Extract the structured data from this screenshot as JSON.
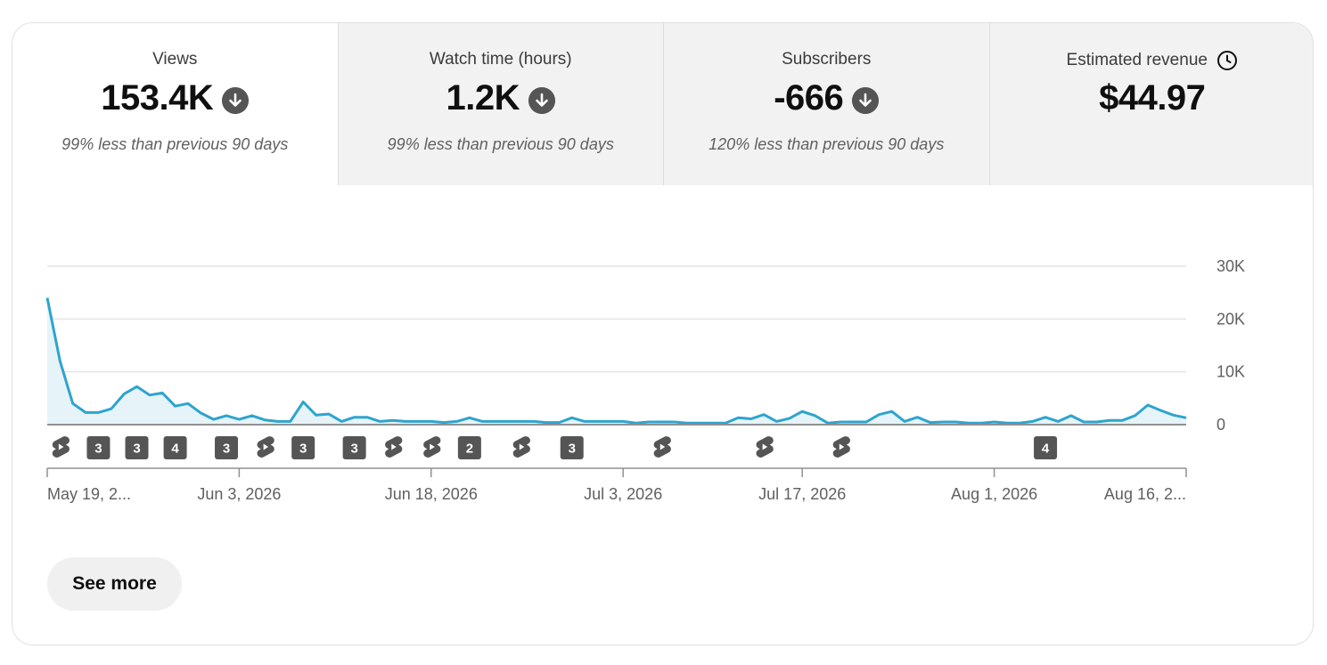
{
  "tabs": [
    {
      "label": "Views",
      "value": "153.4K",
      "change": "99% less than previous 90 days",
      "icon": "arrow-down-circle-icon",
      "selected": true
    },
    {
      "label": "Watch time (hours)",
      "value": "1.2K",
      "change": "99% less than previous 90 days",
      "icon": "arrow-down-circle-icon"
    },
    {
      "label": "Subscribers",
      "value": "-666",
      "change": "120% less than previous 90 days",
      "icon": "arrow-down-circle-icon"
    },
    {
      "label": "Estimated revenue",
      "value": "$44.97",
      "icon": "clock-icon"
    }
  ],
  "chart_data": {
    "type": "area",
    "series": [
      {
        "values": [
          24000,
          12000,
          4000,
          2300,
          2300,
          3000,
          5800,
          7200,
          5600,
          6000,
          3500,
          4000,
          2200,
          1000,
          1700,
          1000,
          1700,
          900,
          600,
          600,
          4300,
          1800,
          2000,
          600,
          1400,
          1400,
          600,
          800,
          600,
          600,
          600,
          400,
          600,
          1300,
          600,
          600,
          600,
          600,
          600,
          400,
          400,
          1300,
          600,
          600,
          600,
          600,
          300,
          500,
          500,
          500,
          300,
          300,
          300,
          300,
          1300,
          1100,
          1900,
          600,
          1200,
          2500,
          1700,
          300,
          500,
          500,
          500,
          1900,
          2500,
          600,
          1400,
          400,
          500,
          500,
          300,
          300,
          500,
          300,
          300,
          600,
          1400,
          600,
          1700,
          500,
          500,
          800,
          800,
          1700,
          3700,
          2700,
          1800,
          1300
        ]
      }
    ],
    "x_ticks": [
      "May 19, 2...",
      "Jun 3, 2026",
      "Jun 18, 2026",
      "Jul 3, 2026",
      "Jul 17, 2026",
      "Aug 1, 2026",
      "Aug 16, 2..."
    ],
    "x_tick_days": [
      0,
      15,
      30,
      45,
      59,
      74,
      89
    ],
    "y_ticks": [
      "30K",
      "20K",
      "10K",
      "0"
    ],
    "ylim": [
      0,
      30000
    ],
    "grid": true,
    "line_color": "#2ea4cf",
    "fill_color": "#e6f4f9"
  },
  "markers": [
    {
      "day": 1,
      "type": "shorts",
      "icon": "shorts-icon"
    },
    {
      "day": 4,
      "type": "count",
      "label": "3"
    },
    {
      "day": 7,
      "type": "count",
      "label": "3"
    },
    {
      "day": 10,
      "type": "count",
      "label": "4"
    },
    {
      "day": 14,
      "type": "count",
      "label": "3"
    },
    {
      "day": 17,
      "type": "shorts",
      "icon": "shorts-icon"
    },
    {
      "day": 20,
      "type": "count",
      "label": "3"
    },
    {
      "day": 24,
      "type": "count",
      "label": "3"
    },
    {
      "day": 27,
      "type": "shorts",
      "icon": "shorts-icon"
    },
    {
      "day": 30,
      "type": "shorts",
      "icon": "shorts-icon"
    },
    {
      "day": 33,
      "type": "count",
      "label": "2"
    },
    {
      "day": 37,
      "type": "shorts",
      "icon": "shorts-icon"
    },
    {
      "day": 41,
      "type": "count",
      "label": "3"
    },
    {
      "day": 48,
      "type": "shorts",
      "icon": "shorts-icon"
    },
    {
      "day": 56,
      "type": "shorts",
      "icon": "shorts-icon"
    },
    {
      "day": 62,
      "type": "shorts",
      "icon": "shorts-icon"
    },
    {
      "day": 78,
      "type": "count",
      "label": "4"
    }
  ],
  "see_more": "See more"
}
